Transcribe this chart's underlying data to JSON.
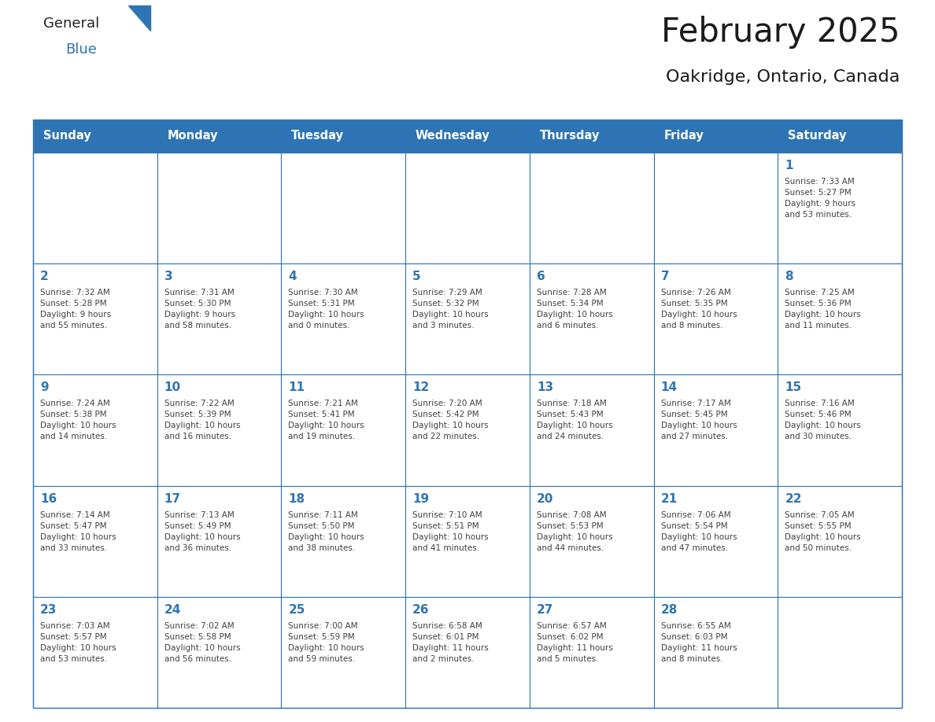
{
  "title": "February 2025",
  "subtitle": "Oakridge, Ontario, Canada",
  "days_of_week": [
    "Sunday",
    "Monday",
    "Tuesday",
    "Wednesday",
    "Thursday",
    "Friday",
    "Saturday"
  ],
  "header_bg": "#2E74B5",
  "header_text": "#FFFFFF",
  "cell_bg": "#FFFFFF",
  "cell_border": "#2E74B5",
  "day_number_color": "#2E74B5",
  "content_color": "#404040",
  "title_color": "#1a1a1a",
  "subtitle_color": "#1a1a1a",
  "logo_general_color": "#222222",
  "logo_blue_color": "#2E74B5",
  "weeks": [
    [
      {
        "day": null,
        "info": null
      },
      {
        "day": null,
        "info": null
      },
      {
        "day": null,
        "info": null
      },
      {
        "day": null,
        "info": null
      },
      {
        "day": null,
        "info": null
      },
      {
        "day": null,
        "info": null
      },
      {
        "day": 1,
        "info": "Sunrise: 7:33 AM\nSunset: 5:27 PM\nDaylight: 9 hours\nand 53 minutes."
      }
    ],
    [
      {
        "day": 2,
        "info": "Sunrise: 7:32 AM\nSunset: 5:28 PM\nDaylight: 9 hours\nand 55 minutes."
      },
      {
        "day": 3,
        "info": "Sunrise: 7:31 AM\nSunset: 5:30 PM\nDaylight: 9 hours\nand 58 minutes."
      },
      {
        "day": 4,
        "info": "Sunrise: 7:30 AM\nSunset: 5:31 PM\nDaylight: 10 hours\nand 0 minutes."
      },
      {
        "day": 5,
        "info": "Sunrise: 7:29 AM\nSunset: 5:32 PM\nDaylight: 10 hours\nand 3 minutes."
      },
      {
        "day": 6,
        "info": "Sunrise: 7:28 AM\nSunset: 5:34 PM\nDaylight: 10 hours\nand 6 minutes."
      },
      {
        "day": 7,
        "info": "Sunrise: 7:26 AM\nSunset: 5:35 PM\nDaylight: 10 hours\nand 8 minutes."
      },
      {
        "day": 8,
        "info": "Sunrise: 7:25 AM\nSunset: 5:36 PM\nDaylight: 10 hours\nand 11 minutes."
      }
    ],
    [
      {
        "day": 9,
        "info": "Sunrise: 7:24 AM\nSunset: 5:38 PM\nDaylight: 10 hours\nand 14 minutes."
      },
      {
        "day": 10,
        "info": "Sunrise: 7:22 AM\nSunset: 5:39 PM\nDaylight: 10 hours\nand 16 minutes."
      },
      {
        "day": 11,
        "info": "Sunrise: 7:21 AM\nSunset: 5:41 PM\nDaylight: 10 hours\nand 19 minutes."
      },
      {
        "day": 12,
        "info": "Sunrise: 7:20 AM\nSunset: 5:42 PM\nDaylight: 10 hours\nand 22 minutes."
      },
      {
        "day": 13,
        "info": "Sunrise: 7:18 AM\nSunset: 5:43 PM\nDaylight: 10 hours\nand 24 minutes."
      },
      {
        "day": 14,
        "info": "Sunrise: 7:17 AM\nSunset: 5:45 PM\nDaylight: 10 hours\nand 27 minutes."
      },
      {
        "day": 15,
        "info": "Sunrise: 7:16 AM\nSunset: 5:46 PM\nDaylight: 10 hours\nand 30 minutes."
      }
    ],
    [
      {
        "day": 16,
        "info": "Sunrise: 7:14 AM\nSunset: 5:47 PM\nDaylight: 10 hours\nand 33 minutes."
      },
      {
        "day": 17,
        "info": "Sunrise: 7:13 AM\nSunset: 5:49 PM\nDaylight: 10 hours\nand 36 minutes."
      },
      {
        "day": 18,
        "info": "Sunrise: 7:11 AM\nSunset: 5:50 PM\nDaylight: 10 hours\nand 38 minutes."
      },
      {
        "day": 19,
        "info": "Sunrise: 7:10 AM\nSunset: 5:51 PM\nDaylight: 10 hours\nand 41 minutes."
      },
      {
        "day": 20,
        "info": "Sunrise: 7:08 AM\nSunset: 5:53 PM\nDaylight: 10 hours\nand 44 minutes."
      },
      {
        "day": 21,
        "info": "Sunrise: 7:06 AM\nSunset: 5:54 PM\nDaylight: 10 hours\nand 47 minutes."
      },
      {
        "day": 22,
        "info": "Sunrise: 7:05 AM\nSunset: 5:55 PM\nDaylight: 10 hours\nand 50 minutes."
      }
    ],
    [
      {
        "day": 23,
        "info": "Sunrise: 7:03 AM\nSunset: 5:57 PM\nDaylight: 10 hours\nand 53 minutes."
      },
      {
        "day": 24,
        "info": "Sunrise: 7:02 AM\nSunset: 5:58 PM\nDaylight: 10 hours\nand 56 minutes."
      },
      {
        "day": 25,
        "info": "Sunrise: 7:00 AM\nSunset: 5:59 PM\nDaylight: 10 hours\nand 59 minutes."
      },
      {
        "day": 26,
        "info": "Sunrise: 6:58 AM\nSunset: 6:01 PM\nDaylight: 11 hours\nand 2 minutes."
      },
      {
        "day": 27,
        "info": "Sunrise: 6:57 AM\nSunset: 6:02 PM\nDaylight: 11 hours\nand 5 minutes."
      },
      {
        "day": 28,
        "info": "Sunrise: 6:55 AM\nSunset: 6:03 PM\nDaylight: 11 hours\nand 8 minutes."
      },
      {
        "day": null,
        "info": null
      }
    ]
  ],
  "figwidth": 11.88,
  "figheight": 9.18,
  "dpi": 100
}
